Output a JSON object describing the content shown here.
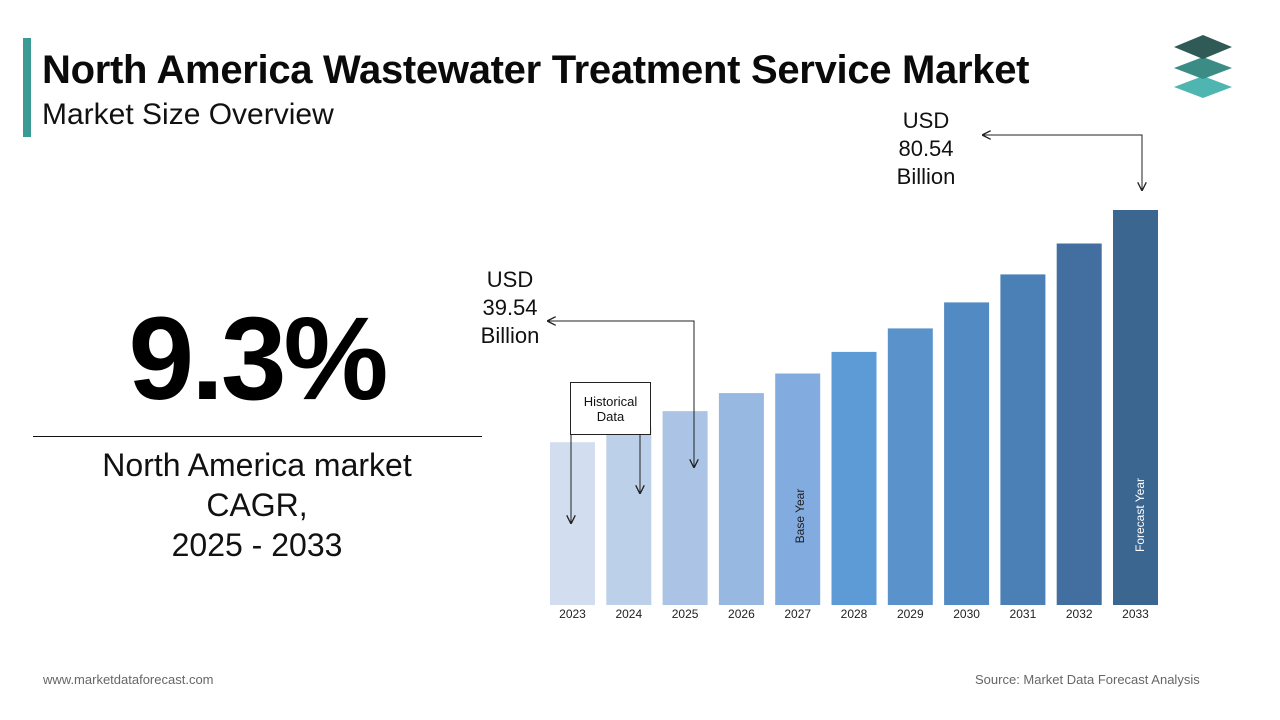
{
  "title": "North America Wastewater Treatment Service Market",
  "subtitle": "Market Size Overview",
  "logo_icon": "stacked-layers-logo-icon",
  "cagr": {
    "value": "9.3%",
    "caption_line1": "North America market",
    "caption_line2": "CAGR,",
    "caption_line3": "2025 - 2033"
  },
  "annotations": {
    "start": {
      "line1": "USD",
      "line2": "39.54",
      "line3": "Billion"
    },
    "end": {
      "line1": "USD",
      "line2": "80.54",
      "line3": "Billion"
    },
    "historical_line1": "Historical",
    "historical_line2": "Data",
    "base_year_label": "Base Year",
    "forecast_year_label": "Forecast Year"
  },
  "footer": {
    "website": "www.marketdataforecast.com",
    "source": "Source: Market Data Forecast Analysis"
  },
  "colors": {
    "accent": "#3a9a96",
    "bars": [
      "#d2deef",
      "#bdd0ea",
      "#abc4e5",
      "#97b8e0",
      "#82abe0",
      "#5d9bd6",
      "#5a93cc",
      "#528bc3",
      "#4a80b6",
      "#426fa0",
      "#3b6690"
    ]
  },
  "chart_data": {
    "type": "bar",
    "categories": [
      "2023",
      "2024",
      "2025",
      "2026",
      "2027",
      "2028",
      "2029",
      "2030",
      "2031",
      "2032",
      "2033"
    ],
    "values": [
      33.2,
      36.3,
      39.54,
      43.2,
      47.2,
      51.6,
      56.4,
      61.7,
      67.4,
      73.7,
      80.54
    ],
    "title": "",
    "xlabel": "",
    "ylabel": "",
    "base_year": "2025",
    "forecast_year": "2033",
    "grid": false,
    "legend": "none"
  }
}
